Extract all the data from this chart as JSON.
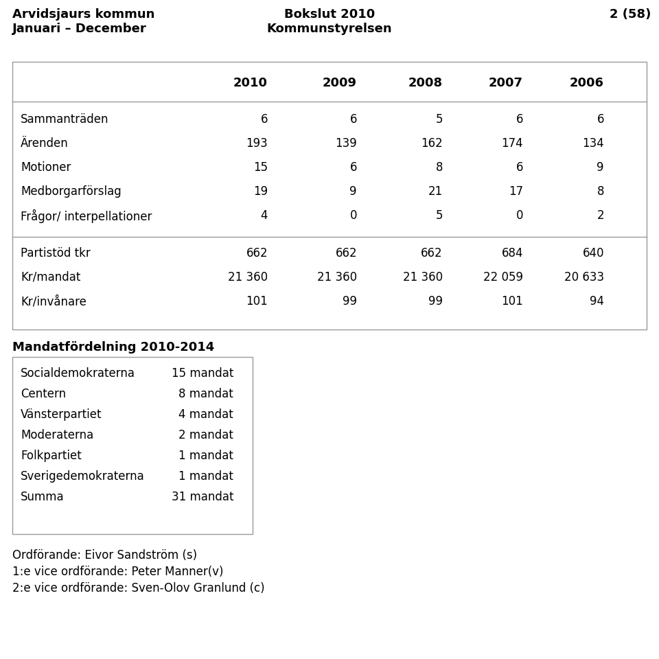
{
  "header_left_line1": "Arvidsjaurs kommun",
  "header_left_line2": "Januari – December",
  "header_center_line1": "Bokslut 2010",
  "header_center_line2": "Kommunstyrelsen",
  "header_right": "2 (58)",
  "table_years": [
    "2010",
    "2009",
    "2008",
    "2007",
    "2006"
  ],
  "table_rows": [
    {
      "label": "Sammanträden",
      "values": [
        "6",
        "6",
        "5",
        "6",
        "6"
      ]
    },
    {
      "label": "Ärenden",
      "values": [
        "193",
        "139",
        "162",
        "174",
        "134"
      ]
    },
    {
      "label": "Motioner",
      "values": [
        "15",
        "6",
        "8",
        "6",
        "9"
      ]
    },
    {
      "label": "Medborgarförslag",
      "values": [
        "19",
        "9",
        "21",
        "17",
        "8"
      ]
    },
    {
      "label": "Frågor/ interpellationer",
      "values": [
        "4",
        "0",
        "5",
        "0",
        "2"
      ]
    },
    {
      "label": "Partistöd tkr",
      "values": [
        "662",
        "662",
        "662",
        "684",
        "640"
      ]
    },
    {
      "label": "Kr/mandat",
      "values": [
        "21 360",
        "21 360",
        "21 360",
        "22 059",
        "20 633"
      ]
    },
    {
      "label": "Kr/invånare",
      "values": [
        "101",
        "99",
        "99",
        "101",
        "94"
      ]
    }
  ],
  "mandat_title": "Mandatfördelning 2010-2014",
  "mandat_rows": [
    {
      "party": "Socialdemokraterna",
      "value": "15 mandat"
    },
    {
      "party": "Centern",
      "value": "8 mandat"
    },
    {
      "party": "Vänsterpartiet",
      "value": "4 mandat"
    },
    {
      "party": "Moderaterna",
      "value": "2 mandat"
    },
    {
      "party": "Folkpartiet",
      "value": "1 mandat"
    },
    {
      "party": "Sverigedemokraterna",
      "value": "1 mandat"
    },
    {
      "party": "Summa",
      "value": "31 mandat"
    }
  ],
  "footer_lines": [
    "Ordförande: Eivor Sandström (s)",
    "1:e vice ordförande: Peter Manner(v)",
    "2:e vice ordförande: Sven-Olov Granlund (c)"
  ],
  "bg_color": "#ffffff",
  "text_color": "#000000",
  "border_color": "#999999"
}
